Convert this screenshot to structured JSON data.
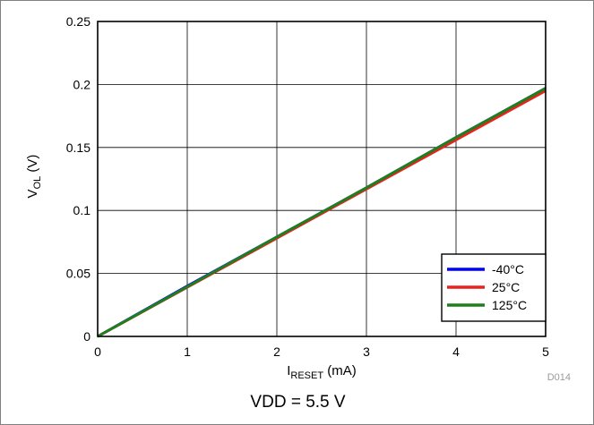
{
  "chart_data": {
    "type": "line",
    "ylabel": {
      "main": "V",
      "sub": "OL",
      "unit": " (V)"
    },
    "xlabel": {
      "main": "I",
      "sub": "RESET",
      "unit": " (mA)"
    },
    "xlim": [
      0,
      5
    ],
    "ylim": [
      0,
      0.25
    ],
    "x_ticks": [
      "0",
      "1",
      "2",
      "3",
      "4",
      "5"
    ],
    "y_ticks": [
      "0",
      "0.05",
      "0.1",
      "0.15",
      "0.2",
      "0.25"
    ],
    "grid": true,
    "legend_position": "bottom-right",
    "series": [
      {
        "name": "-40°C",
        "color": "#0000ff",
        "x": [
          0,
          1,
          2,
          3,
          4,
          5
        ],
        "y": [
          0,
          0.04,
          0.079,
          0.118,
          0.158,
          0.197
        ]
      },
      {
        "name": "25°C",
        "color": "#e8231e",
        "x": [
          0,
          1,
          2,
          3,
          4,
          5
        ],
        "y": [
          0,
          0.039,
          0.078,
          0.117,
          0.156,
          0.195
        ]
      },
      {
        "name": "125°C",
        "color": "#1e7f1e",
        "x": [
          0,
          1,
          2,
          3,
          4,
          5
        ],
        "y": [
          0,
          0.0395,
          0.079,
          0.118,
          0.158,
          0.197
        ]
      }
    ]
  },
  "figure_id": "D014",
  "caption": "VDD = 5.5 V"
}
